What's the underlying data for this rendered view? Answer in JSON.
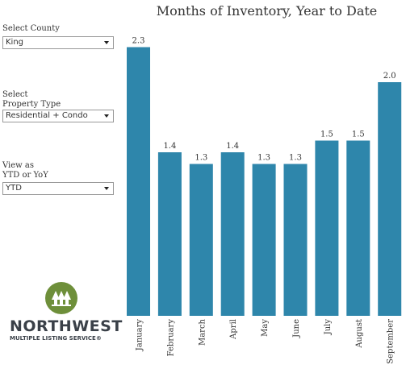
{
  "filters": {
    "county": {
      "label": "Select County",
      "value": "King"
    },
    "property_type": {
      "label_line1": "Select",
      "label_line2": "Property Type",
      "value": "Residential + Condo"
    },
    "view_as": {
      "label_line1": "View as",
      "label_line2": "YTD or YoY",
      "value": "YTD"
    }
  },
  "brand": {
    "name": "NORTHWEST",
    "subtitle": "MULTIPLE LISTING SERVICE®",
    "logo_color": "#6e8f3a"
  },
  "chart_data": {
    "type": "bar",
    "title": "Months of Inventory, Year to Date",
    "categories": [
      "January",
      "February",
      "March",
      "April",
      "May",
      "June",
      "July",
      "August",
      "September"
    ],
    "values": [
      2.3,
      1.4,
      1.3,
      1.4,
      1.3,
      1.3,
      1.5,
      1.5,
      2.0
    ],
    "data_labels": [
      "2.3",
      "1.4",
      "1.3",
      "1.4",
      "1.3",
      "1.3",
      "1.5",
      "1.5",
      "2.0"
    ],
    "ylim": [
      0,
      2.4
    ],
    "bar_color": "#2e86ab",
    "grid": false,
    "xlabel": "",
    "ylabel": ""
  }
}
